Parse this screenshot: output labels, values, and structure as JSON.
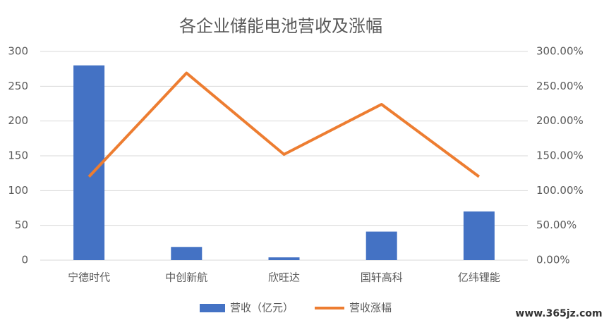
{
  "chart_data": {
    "type": "combo",
    "title": "各企业储能电池营收及涨幅",
    "categories": [
      "宁德时代",
      "中创新航",
      "欣旺达",
      "国轩高科",
      "亿纬锂能"
    ],
    "series": [
      {
        "name": "营收（亿元）",
        "type": "bar",
        "color": "#4472c4",
        "values": [
          280,
          19,
          4,
          41,
          70
        ]
      },
      {
        "name": "营收涨幅",
        "type": "line",
        "axis": "y2",
        "color": "#ed7d31",
        "values": [
          120,
          269,
          152,
          224,
          120
        ]
      }
    ],
    "ylim": [
      0,
      300
    ],
    "yticks": [
      0,
      50,
      100,
      150,
      200,
      250,
      300
    ],
    "y2lim": [
      0,
      300
    ],
    "y2ticks": [
      {
        "value": 0,
        "label": "0.00%"
      },
      {
        "value": 50,
        "label": "50.00%"
      },
      {
        "value": 100,
        "label": "100.00%"
      },
      {
        "value": 150,
        "label": "150.00%"
      },
      {
        "value": 200,
        "label": "200.00%"
      },
      {
        "value": 250,
        "label": "250.00%"
      },
      {
        "value": 300,
        "label": "300.00%"
      }
    ],
    "grid": true,
    "legend": "bottom",
    "watermark": "www.365jz.com"
  }
}
